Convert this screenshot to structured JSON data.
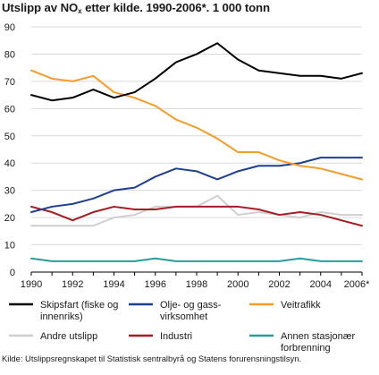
{
  "title": {
    "prefix": "Utslipp av NO",
    "sub": "x",
    "suffix": " etter kilde. 1990-2006*. 1 000 tonn"
  },
  "source": "Kilde: Utslippsregnskapet til Statistisk sentralbyrå og Statens forurensningstilsyn.",
  "chart_data": {
    "type": "line",
    "title": "Utslipp av NOx etter kilde. 1990-2006*. 1 000 tonn",
    "xlabel": "",
    "ylabel": "",
    "x": [
      1990,
      1991,
      1992,
      1993,
      1994,
      1995,
      1996,
      1997,
      1998,
      1999,
      2000,
      2001,
      2002,
      2003,
      2004,
      2005,
      2006
    ],
    "x_tick_values": [
      1990,
      1992,
      1994,
      1996,
      1998,
      2000,
      2002,
      2004,
      2006
    ],
    "x_tick_labels": [
      "1990",
      "1992",
      "1994",
      "1996",
      "1998",
      "2000",
      "2002",
      "2004",
      "2006*"
    ],
    "ylim": [
      0,
      90
    ],
    "y_ticks": [
      0,
      10,
      20,
      30,
      40,
      50,
      60,
      70,
      80,
      90
    ],
    "grid": true,
    "legend_position": "bottom",
    "series": [
      {
        "name": "Skipsfart (fiske og innenriks)",
        "label_lines": [
          "Skipsfart (fiske og",
          "innenriks)"
        ],
        "color": "#000000",
        "values": [
          65,
          63,
          64,
          67,
          64,
          66,
          71,
          77,
          80,
          84,
          78,
          74,
          73,
          72,
          72,
          71,
          73
        ]
      },
      {
        "name": "Olje- og gassvirksomhet",
        "label_lines": [
          "Olje- og gass-",
          "virksomhet"
        ],
        "color": "#1f3f8f",
        "values": [
          22,
          24,
          25,
          27,
          30,
          31,
          35,
          38,
          37,
          34,
          37,
          39,
          39,
          40,
          42,
          42,
          42
        ]
      },
      {
        "name": "Veitrafikk",
        "label_lines": [
          "Veitrafikk"
        ],
        "color": "#f59d2a",
        "values": [
          74,
          71,
          70,
          72,
          66,
          64,
          61,
          56,
          53,
          49,
          44,
          44,
          41,
          39,
          38,
          36,
          34
        ]
      },
      {
        "name": "Andre utslipp",
        "label_lines": [
          "Andre utslipp"
        ],
        "color": "#cfcfcf",
        "values": [
          17,
          17,
          17,
          17,
          20,
          21,
          24,
          24,
          24,
          28,
          21,
          22,
          21,
          20,
          22,
          21,
          21
        ]
      },
      {
        "name": "Industri",
        "label_lines": [
          "Industri"
        ],
        "color": "#a51c24",
        "values": [
          24,
          22,
          19,
          22,
          24,
          23,
          23,
          24,
          24,
          24,
          24,
          23,
          21,
          22,
          21,
          19,
          17
        ]
      },
      {
        "name": "Annen stasjonær forbrenning",
        "label_lines": [
          "Annen stasjonær",
          "forbrenning"
        ],
        "color": "#2a9d9a",
        "values": [
          5,
          4,
          4,
          4,
          4,
          4,
          5,
          4,
          4,
          4,
          4,
          4,
          4,
          5,
          4,
          4,
          4
        ]
      }
    ]
  }
}
